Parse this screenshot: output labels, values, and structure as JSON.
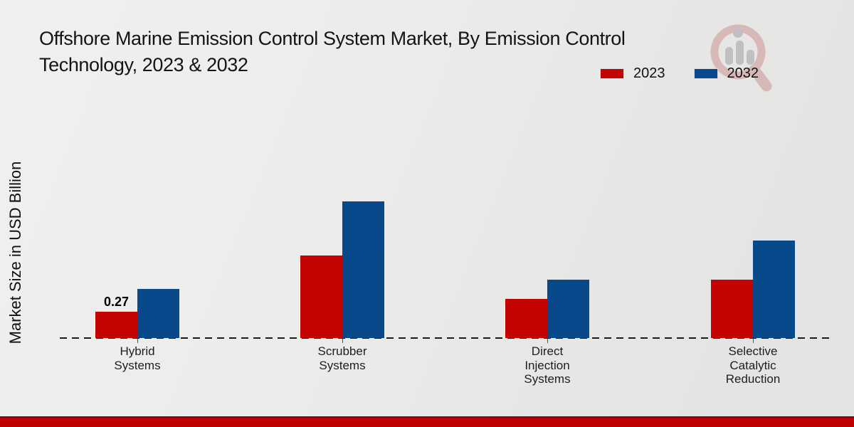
{
  "header": {
    "title_line1": "Offshore Marine Emission Control System Market, By Emission Control",
    "title_line2": "Technology, 2023 & 2032"
  },
  "legend": {
    "items": [
      {
        "label": "2023",
        "color": "#c40303"
      },
      {
        "label": "2032",
        "color": "#07498a"
      }
    ]
  },
  "y_axis_label": "Market Size in USD Billion",
  "footer": {
    "bar_color": "#c00000"
  },
  "watermark": {
    "icon": "magnifier-bar-chart-logo"
  },
  "chart_data": {
    "type": "bar",
    "title": "Offshore Marine Emission Control System Market, By Emission Control Technology, 2023 & 2032",
    "categories": [
      "Hybrid\nSystems",
      "Scrubber\nSystems",
      "Direct\nInjection\nSystems",
      "Selective\nCatalytic\nReduction"
    ],
    "series": [
      {
        "name": "2023",
        "color": "#c40303",
        "values": [
          0.27,
          0.85,
          0.4,
          0.6
        ],
        "value_labels": [
          "0.27",
          "",
          "",
          ""
        ]
      },
      {
        "name": "2032",
        "color": "#07498a",
        "values": [
          0.5,
          1.4,
          0.6,
          1.0
        ],
        "value_labels": [
          "",
          "",
          "",
          ""
        ]
      }
    ],
    "xlabel": "",
    "ylabel": "Market Size in USD Billion",
    "ylim": [
      0,
      1.5
    ],
    "grid": false,
    "baseline_style": "dashed-zero-line",
    "legend_position": "top-right"
  }
}
